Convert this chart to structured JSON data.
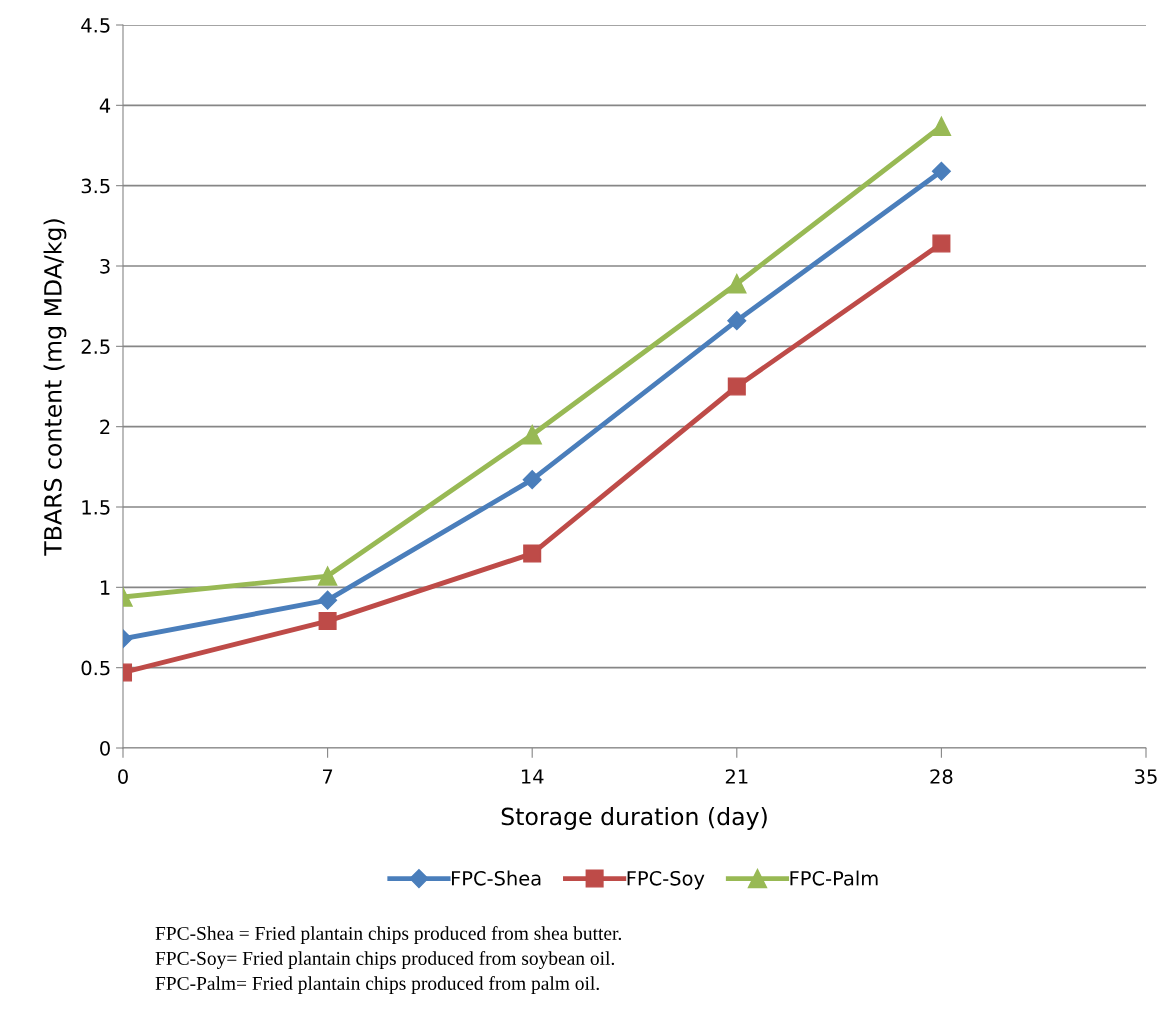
{
  "chart_data": {
    "type": "line",
    "xlabel": "Storage duration (day)",
    "ylabel": "TBARS content (mg MDA/kg)",
    "x": [
      0,
      7,
      14,
      21,
      28
    ],
    "series": [
      {
        "name": "FPC-Shea",
        "color": "#4a7ebb",
        "marker": "diamond",
        "values": [
          0.68,
          0.92,
          1.67,
          2.66,
          3.59
        ]
      },
      {
        "name": "FPC-Soy",
        "color": "#be4b48",
        "marker": "square",
        "values": [
          0.47,
          0.79,
          1.21,
          2.25,
          3.14
        ]
      },
      {
        "name": "FPC-Palm",
        "color": "#98b954",
        "marker": "triangle",
        "values": [
          0.94,
          1.07,
          1.95,
          2.89,
          3.87
        ]
      }
    ],
    "xlim": [
      0,
      35
    ],
    "xticks": [
      0,
      7,
      14,
      21,
      28,
      35
    ],
    "ylim": [
      0,
      4.5
    ],
    "yticks": [
      0,
      0.5,
      1,
      1.5,
      2,
      2.5,
      3,
      3.5,
      4,
      4.5
    ],
    "grid": "y",
    "legend": "bottom",
    "line_style": "solid",
    "annotations": [
      "FPC-Shea = Fried plantain chips produced from shea butter.",
      "FPC-Soy= Fried plantain chips produced from soybean oil.",
      "FPC-Palm= Fried plantain chips produced from palm oil."
    ]
  }
}
